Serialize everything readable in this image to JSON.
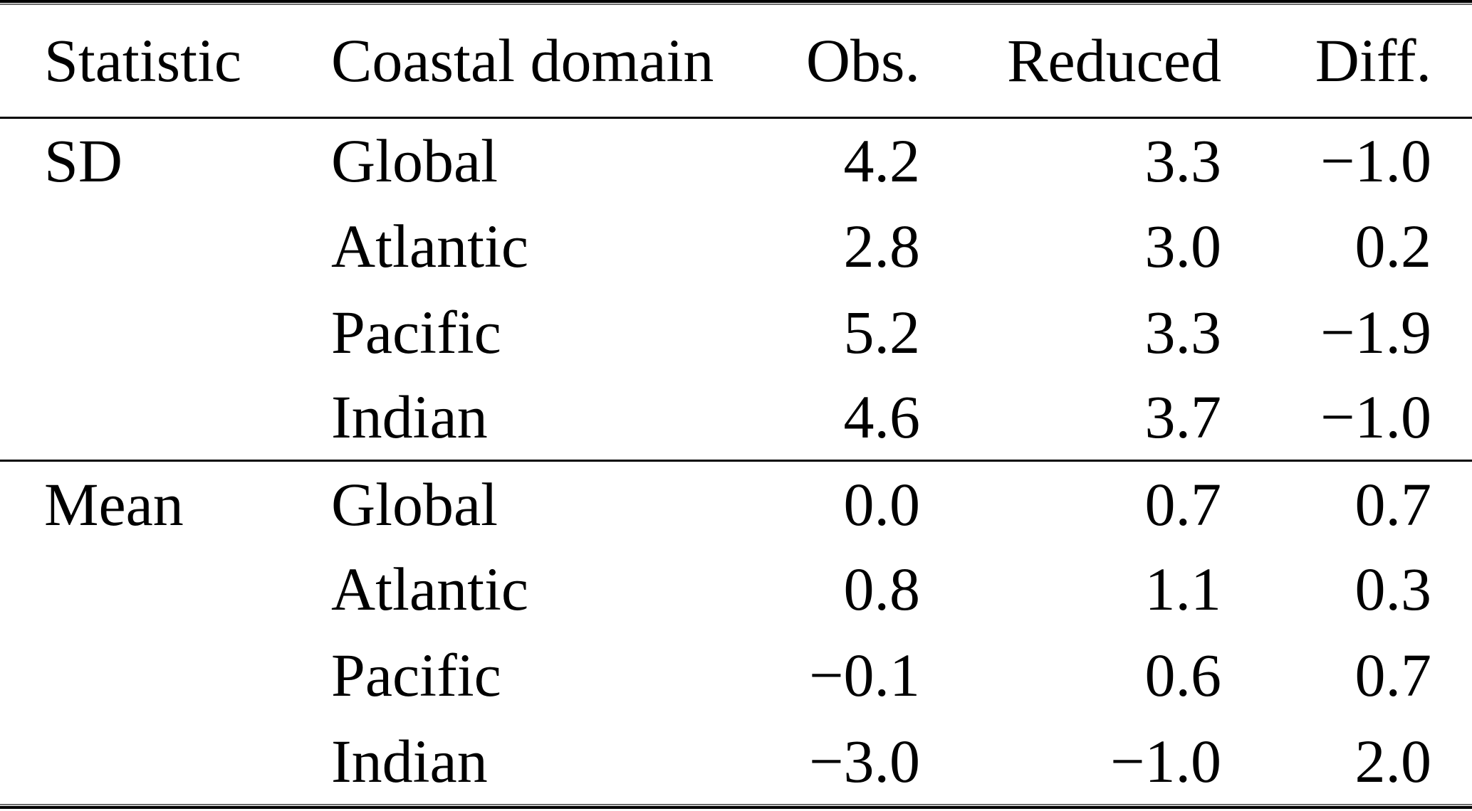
{
  "chart_data": {
    "type": "table",
    "columns": [
      "Statistic",
      "Coastal domain",
      "Obs.",
      "Reduced",
      "Diff."
    ],
    "sections": [
      {
        "statistic": "SD",
        "rows": [
          {
            "domain": "Global",
            "obs": "4.2",
            "reduced": "3.3",
            "diff": "−1.0"
          },
          {
            "domain": "Atlantic",
            "obs": "2.8",
            "reduced": "3.0",
            "diff": "0.2"
          },
          {
            "domain": "Pacific",
            "obs": "5.2",
            "reduced": "3.3",
            "diff": "−1.9"
          },
          {
            "domain": "Indian",
            "obs": "4.6",
            "reduced": "3.7",
            "diff": "−1.0"
          }
        ]
      },
      {
        "statistic": "Mean",
        "rows": [
          {
            "domain": "Global",
            "obs": "0.0",
            "reduced": "0.7",
            "diff": "0.7"
          },
          {
            "domain": "Atlantic",
            "obs": "0.8",
            "reduced": "1.1",
            "diff": "0.3"
          },
          {
            "domain": "Pacific",
            "obs": "−0.1",
            "reduced": "0.6",
            "diff": "0.7"
          },
          {
            "domain": "Indian",
            "obs": "−3.0",
            "reduced": "−1.0",
            "diff": "2.0"
          }
        ]
      }
    ],
    "layout": {
      "grid": "horizontal-rules-only",
      "numeric_alignment": "right"
    }
  },
  "colors": {
    "background": "#ffffff",
    "text": "#000000",
    "rule_thick": "#000000",
    "rule_thin": "#6b6b6b"
  }
}
